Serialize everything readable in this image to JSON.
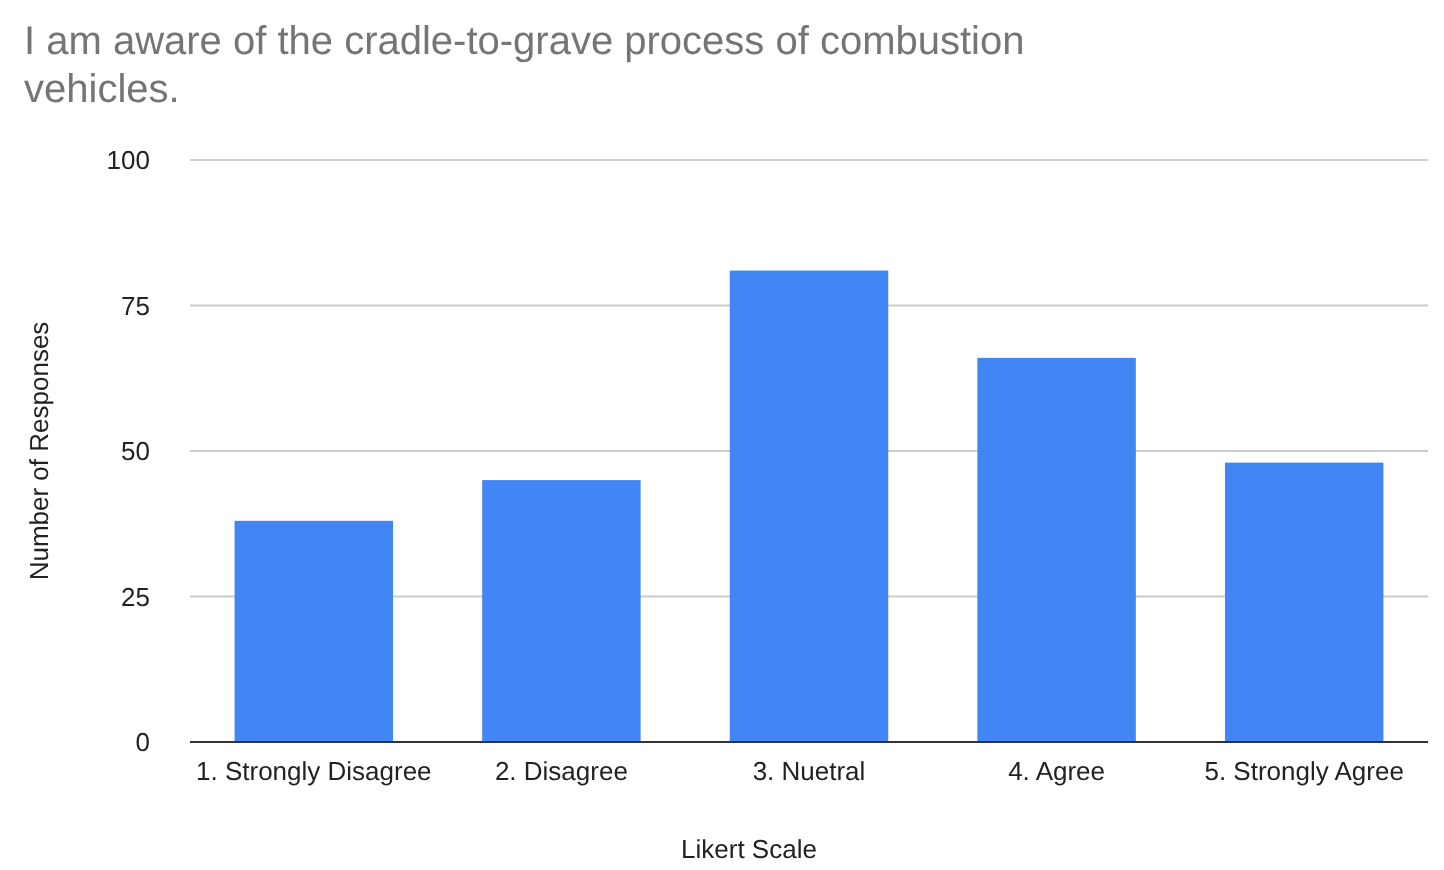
{
  "chart_data": {
    "type": "bar",
    "title": "I am aware of the cradle-to-grave process of combustion vehicles.",
    "xlabel": "Likert Scale",
    "ylabel": "Number of Responses",
    "categories": [
      "1. Strongly Disagree",
      "2. Disagree",
      "3. Nuetral",
      "4. Agree",
      "5. Strongly Agree"
    ],
    "values": [
      38,
      45,
      81,
      66,
      48
    ],
    "color": "#4285f4",
    "ylim": [
      0,
      100
    ],
    "yticks": [
      0,
      25,
      50,
      75,
      100
    ],
    "grid": "y"
  }
}
